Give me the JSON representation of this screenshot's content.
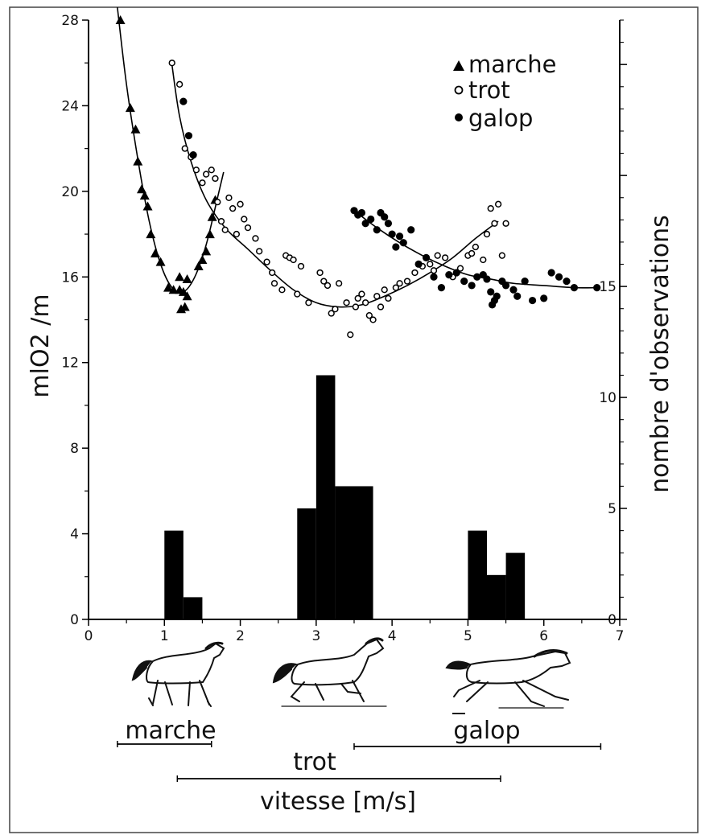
{
  "chart_data": {
    "type": "scatter",
    "xlabel": "vitesse [m/s]",
    "ylabel": "mlO2 /m",
    "y2label": "nombre d'observations",
    "xlim": [
      0,
      7
    ],
    "ylim": [
      0,
      28
    ],
    "y2lim": [
      0,
      27
    ],
    "x_ticks": [
      "0",
      "1",
      "2",
      "3",
      "4",
      "5",
      "6",
      "7"
    ],
    "y_ticks": [
      "0",
      "4",
      "8",
      "12",
      "16",
      "20",
      "24",
      "28"
    ],
    "y2_ticks": [
      "0",
      "5",
      "10",
      "15"
    ],
    "legend": {
      "placement": "top-right",
      "entries": [
        {
          "label": "marche",
          "marker": "triangle"
        },
        {
          "label": "trot",
          "marker": "open-circle"
        },
        {
          "label": "galop",
          "marker": "filled-circle"
        }
      ]
    },
    "series": [
      {
        "name": "marche",
        "marker": "triangle",
        "points": [
          [
            0.42,
            28.0
          ],
          [
            0.55,
            23.9
          ],
          [
            0.62,
            22.9
          ],
          [
            0.65,
            21.4
          ],
          [
            0.7,
            20.1
          ],
          [
            0.74,
            19.8
          ],
          [
            0.78,
            19.3
          ],
          [
            0.82,
            18.0
          ],
          [
            0.88,
            17.1
          ],
          [
            0.95,
            16.7
          ],
          [
            1.05,
            15.5
          ],
          [
            1.12,
            15.4
          ],
          [
            1.2,
            15.4
          ],
          [
            1.25,
            15.3
          ],
          [
            1.3,
            15.1
          ],
          [
            1.22,
            14.5
          ],
          [
            1.27,
            14.6
          ],
          [
            1.2,
            16.0
          ],
          [
            1.3,
            15.9
          ],
          [
            1.45,
            16.5
          ],
          [
            1.5,
            16.8
          ],
          [
            1.55,
            17.2
          ],
          [
            1.6,
            18.0
          ],
          [
            1.63,
            18.8
          ],
          [
            1.67,
            19.6
          ]
        ],
        "fit": [
          [
            0.38,
            28.6
          ],
          [
            0.5,
            25.0
          ],
          [
            0.65,
            21.5
          ],
          [
            0.8,
            18.6
          ],
          [
            0.95,
            16.6
          ],
          [
            1.1,
            15.5
          ],
          [
            1.25,
            15.3
          ],
          [
            1.4,
            16.0
          ],
          [
            1.55,
            17.5
          ],
          [
            1.7,
            19.7
          ],
          [
            1.78,
            20.9
          ]
        ]
      },
      {
        "name": "trot",
        "marker": "open-circle",
        "points": [
          [
            1.1,
            26.0
          ],
          [
            1.2,
            25.0
          ],
          [
            1.27,
            22.0
          ],
          [
            1.35,
            21.6
          ],
          [
            1.42,
            21.0
          ],
          [
            1.5,
            20.4
          ],
          [
            1.55,
            20.8
          ],
          [
            1.62,
            21.0
          ],
          [
            1.67,
            20.6
          ],
          [
            1.7,
            19.5
          ],
          [
            1.75,
            18.6
          ],
          [
            1.8,
            18.2
          ],
          [
            1.85,
            19.7
          ],
          [
            1.9,
            19.2
          ],
          [
            1.95,
            18.0
          ],
          [
            2.0,
            19.4
          ],
          [
            2.05,
            18.7
          ],
          [
            2.1,
            18.3
          ],
          [
            2.2,
            17.8
          ],
          [
            2.25,
            17.2
          ],
          [
            2.35,
            16.7
          ],
          [
            2.42,
            16.2
          ],
          [
            2.45,
            15.7
          ],
          [
            2.55,
            15.4
          ],
          [
            2.6,
            17.0
          ],
          [
            2.65,
            16.9
          ],
          [
            2.7,
            16.8
          ],
          [
            2.75,
            15.2
          ],
          [
            2.8,
            16.5
          ],
          [
            2.9,
            14.8
          ],
          [
            3.05,
            16.2
          ],
          [
            3.1,
            15.8
          ],
          [
            3.15,
            15.6
          ],
          [
            3.2,
            14.3
          ],
          [
            3.25,
            14.5
          ],
          [
            3.3,
            15.7
          ],
          [
            3.4,
            14.8
          ],
          [
            3.45,
            13.3
          ],
          [
            3.52,
            14.6
          ],
          [
            3.55,
            15.0
          ],
          [
            3.6,
            15.2
          ],
          [
            3.65,
            14.8
          ],
          [
            3.7,
            14.2
          ],
          [
            3.75,
            14.0
          ],
          [
            3.8,
            15.1
          ],
          [
            3.85,
            14.6
          ],
          [
            3.9,
            15.4
          ],
          [
            3.95,
            15.0
          ],
          [
            4.05,
            15.5
          ],
          [
            4.1,
            15.7
          ],
          [
            4.2,
            15.8
          ],
          [
            4.3,
            16.2
          ],
          [
            4.4,
            16.5
          ],
          [
            4.5,
            16.6
          ],
          [
            4.55,
            16.3
          ],
          [
            4.6,
            17.0
          ],
          [
            4.7,
            16.9
          ],
          [
            4.8,
            16.0
          ],
          [
            4.9,
            16.4
          ],
          [
            5.0,
            17.0
          ],
          [
            5.05,
            17.1
          ],
          [
            5.1,
            17.4
          ],
          [
            5.2,
            16.8
          ],
          [
            5.25,
            18.0
          ],
          [
            5.3,
            19.2
          ],
          [
            5.35,
            18.5
          ],
          [
            5.4,
            19.4
          ],
          [
            5.45,
            17.0
          ],
          [
            5.5,
            18.5
          ]
        ],
        "fit": [
          [
            1.1,
            25.9
          ],
          [
            1.2,
            23.5
          ],
          [
            1.35,
            21.4
          ],
          [
            1.55,
            19.6
          ],
          [
            1.8,
            18.3
          ],
          [
            2.1,
            17.3
          ],
          [
            2.4,
            16.3
          ],
          [
            2.7,
            15.4
          ],
          [
            3.0,
            14.8
          ],
          [
            3.3,
            14.6
          ],
          [
            3.6,
            14.7
          ],
          [
            3.9,
            15.1
          ],
          [
            4.2,
            15.6
          ],
          [
            4.5,
            16.2
          ],
          [
            4.8,
            16.9
          ],
          [
            5.1,
            17.8
          ],
          [
            5.4,
            18.6
          ]
        ]
      },
      {
        "name": "galop",
        "marker": "filled-circle",
        "points": [
          [
            1.25,
            24.2
          ],
          [
            1.32,
            22.6
          ],
          [
            1.38,
            21.7
          ],
          [
            3.5,
            19.1
          ],
          [
            3.55,
            18.9
          ],
          [
            3.6,
            19.0
          ],
          [
            3.65,
            18.5
          ],
          [
            3.72,
            18.7
          ],
          [
            3.8,
            18.2
          ],
          [
            3.85,
            19.0
          ],
          [
            3.9,
            18.8
          ],
          [
            3.95,
            18.5
          ],
          [
            4.0,
            18.0
          ],
          [
            4.05,
            17.4
          ],
          [
            4.1,
            17.9
          ],
          [
            4.15,
            17.6
          ],
          [
            4.25,
            18.2
          ],
          [
            4.35,
            16.6
          ],
          [
            4.45,
            16.9
          ],
          [
            4.55,
            16.0
          ],
          [
            4.65,
            15.5
          ],
          [
            4.75,
            16.1
          ],
          [
            4.85,
            16.2
          ],
          [
            4.95,
            15.8
          ],
          [
            5.05,
            15.6
          ],
          [
            5.12,
            16.0
          ],
          [
            5.2,
            16.1
          ],
          [
            5.25,
            15.9
          ],
          [
            5.3,
            15.3
          ],
          [
            5.32,
            14.7
          ],
          [
            5.35,
            14.9
          ],
          [
            5.38,
            15.1
          ],
          [
            5.45,
            15.8
          ],
          [
            5.5,
            15.6
          ],
          [
            5.6,
            15.4
          ],
          [
            5.65,
            15.1
          ],
          [
            5.75,
            15.8
          ],
          [
            5.85,
            14.9
          ],
          [
            6.0,
            15.0
          ],
          [
            6.1,
            16.2
          ],
          [
            6.2,
            16.0
          ],
          [
            6.3,
            15.8
          ],
          [
            6.4,
            15.5
          ],
          [
            6.7,
            15.5
          ]
        ],
        "fit": [
          [
            3.5,
            19.1
          ],
          [
            3.8,
            18.3
          ],
          [
            4.1,
            17.6
          ],
          [
            4.4,
            17.0
          ],
          [
            4.7,
            16.5
          ],
          [
            5.0,
            16.1
          ],
          [
            5.3,
            15.9
          ],
          [
            5.6,
            15.7
          ],
          [
            6.0,
            15.6
          ],
          [
            6.4,
            15.5
          ],
          [
            6.7,
            15.5
          ]
        ]
      }
    ],
    "histogram": {
      "axis": "y2",
      "bars": [
        {
          "x0": 1.0,
          "x1": 1.25,
          "count": 4
        },
        {
          "x0": 1.25,
          "x1": 1.5,
          "count": 1
        },
        {
          "x0": 2.75,
          "x1": 3.0,
          "count": 5
        },
        {
          "x0": 3.0,
          "x1": 3.25,
          "count": 11
        },
        {
          "x0": 3.25,
          "x1": 3.75,
          "count": 6
        },
        {
          "x0": 5.0,
          "x1": 5.25,
          "count": 4
        },
        {
          "x0": 5.25,
          "x1": 5.5,
          "count": 2
        },
        {
          "x0": 5.5,
          "x1": 5.75,
          "count": 3
        }
      ]
    },
    "gait_ranges": [
      {
        "label": "marche",
        "x0": 0.38,
        "x1": 1.62
      },
      {
        "label": "trot",
        "x0": 1.17,
        "x1": 5.43
      },
      {
        "label": "galop",
        "x0": 3.5,
        "x1": 6.75
      }
    ]
  }
}
